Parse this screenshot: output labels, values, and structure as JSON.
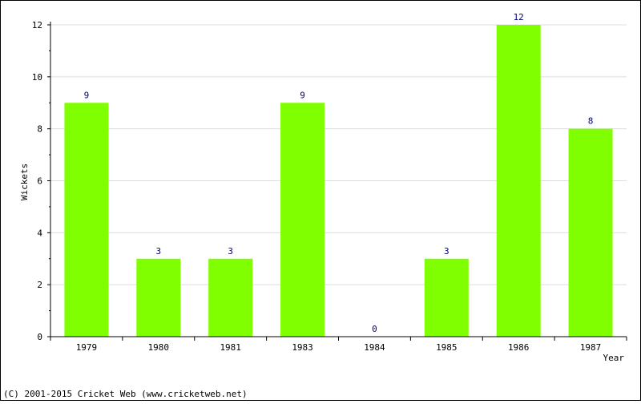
{
  "chart_data": {
    "type": "bar",
    "categories": [
      "1979",
      "1980",
      "1981",
      "1983",
      "1984",
      "1985",
      "1986",
      "1987"
    ],
    "values": [
      9,
      3,
      3,
      9,
      0,
      3,
      12,
      8
    ],
    "data_labels": [
      "9",
      "3",
      "3",
      "9",
      "0",
      "3",
      "12",
      "8"
    ],
    "ylabel": "Wickets",
    "xlabel": "Year",
    "ylim": [
      0,
      12
    ],
    "yticks": [
      "0",
      "2",
      "4",
      "6",
      "8",
      "10",
      "12"
    ],
    "grid": true,
    "colors": {
      "bar": "#80ff00",
      "value_label": "#000080",
      "grid": "#dddddd",
      "axis": "#000000"
    }
  },
  "footer": {
    "copyright": "(C) 2001-2015 Cricket Web (www.cricketweb.net)"
  }
}
